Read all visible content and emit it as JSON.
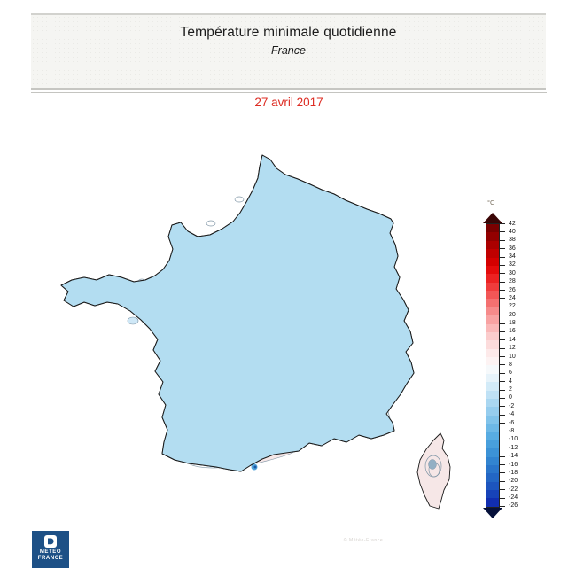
{
  "header": {
    "title": "Température minimale quotidienne",
    "subtitle": "France"
  },
  "date_banner": {
    "date": "27 avril 2017"
  },
  "colorbar": {
    "unit": "°C",
    "tick_labels": [
      42,
      40,
      38,
      36,
      34,
      32,
      30,
      28,
      26,
      24,
      22,
      20,
      18,
      16,
      14,
      12,
      10,
      8,
      6,
      4,
      2,
      0,
      -2,
      -4,
      -6,
      -8,
      -10,
      -12,
      -14,
      -16,
      -18,
      -20,
      -22,
      -24,
      -26
    ],
    "segment_colors": [
      "#7a0000",
      "#930000",
      "#ab0000",
      "#c00000",
      "#d40000",
      "#e40b0b",
      "#ec2222",
      "#f03c3c",
      "#f25656",
      "#f47070",
      "#f68a8a",
      "#f8a2a2",
      "#fab8b8",
      "#fbcccc",
      "#fcdcdc",
      "#fdeaea",
      "#fdf3f3",
      "#f6f9fb",
      "#e7f3fa",
      "#d3ebf8",
      "#bfe1f5",
      "#aad7f1",
      "#96cdee",
      "#81c3ea",
      "#6db8e6",
      "#58ace2",
      "#489fdc",
      "#3c92d6",
      "#3284d0",
      "#2a75ca",
      "#2366c4",
      "#1d55be",
      "#1743b8",
      "#112eb0"
    ]
  },
  "logo": {
    "line1": "METEO",
    "line2": "FRANCE"
  },
  "watermark": "© Météo-France",
  "colors": {
    "date_red": "#dd2c23",
    "logo_navy": "#1d5086",
    "map_base": "#b3ddf1",
    "map_light": "#cfe8f7",
    "map_lighter": "#dcedf9",
    "map_warm_white": "#eef3f1",
    "map_pink": "#f6e7e7",
    "map_cold_1": "#8cc8ea",
    "map_cold_2": "#54a5da",
    "map_cold_3": "#2e7cc4",
    "map_cold_4": "#1b59a8",
    "coastline": "#1a1a1a",
    "contour": "#8096a6",
    "scale_arrow_top": "#3a0505",
    "scale_arrow_bottom": "#05103a"
  }
}
